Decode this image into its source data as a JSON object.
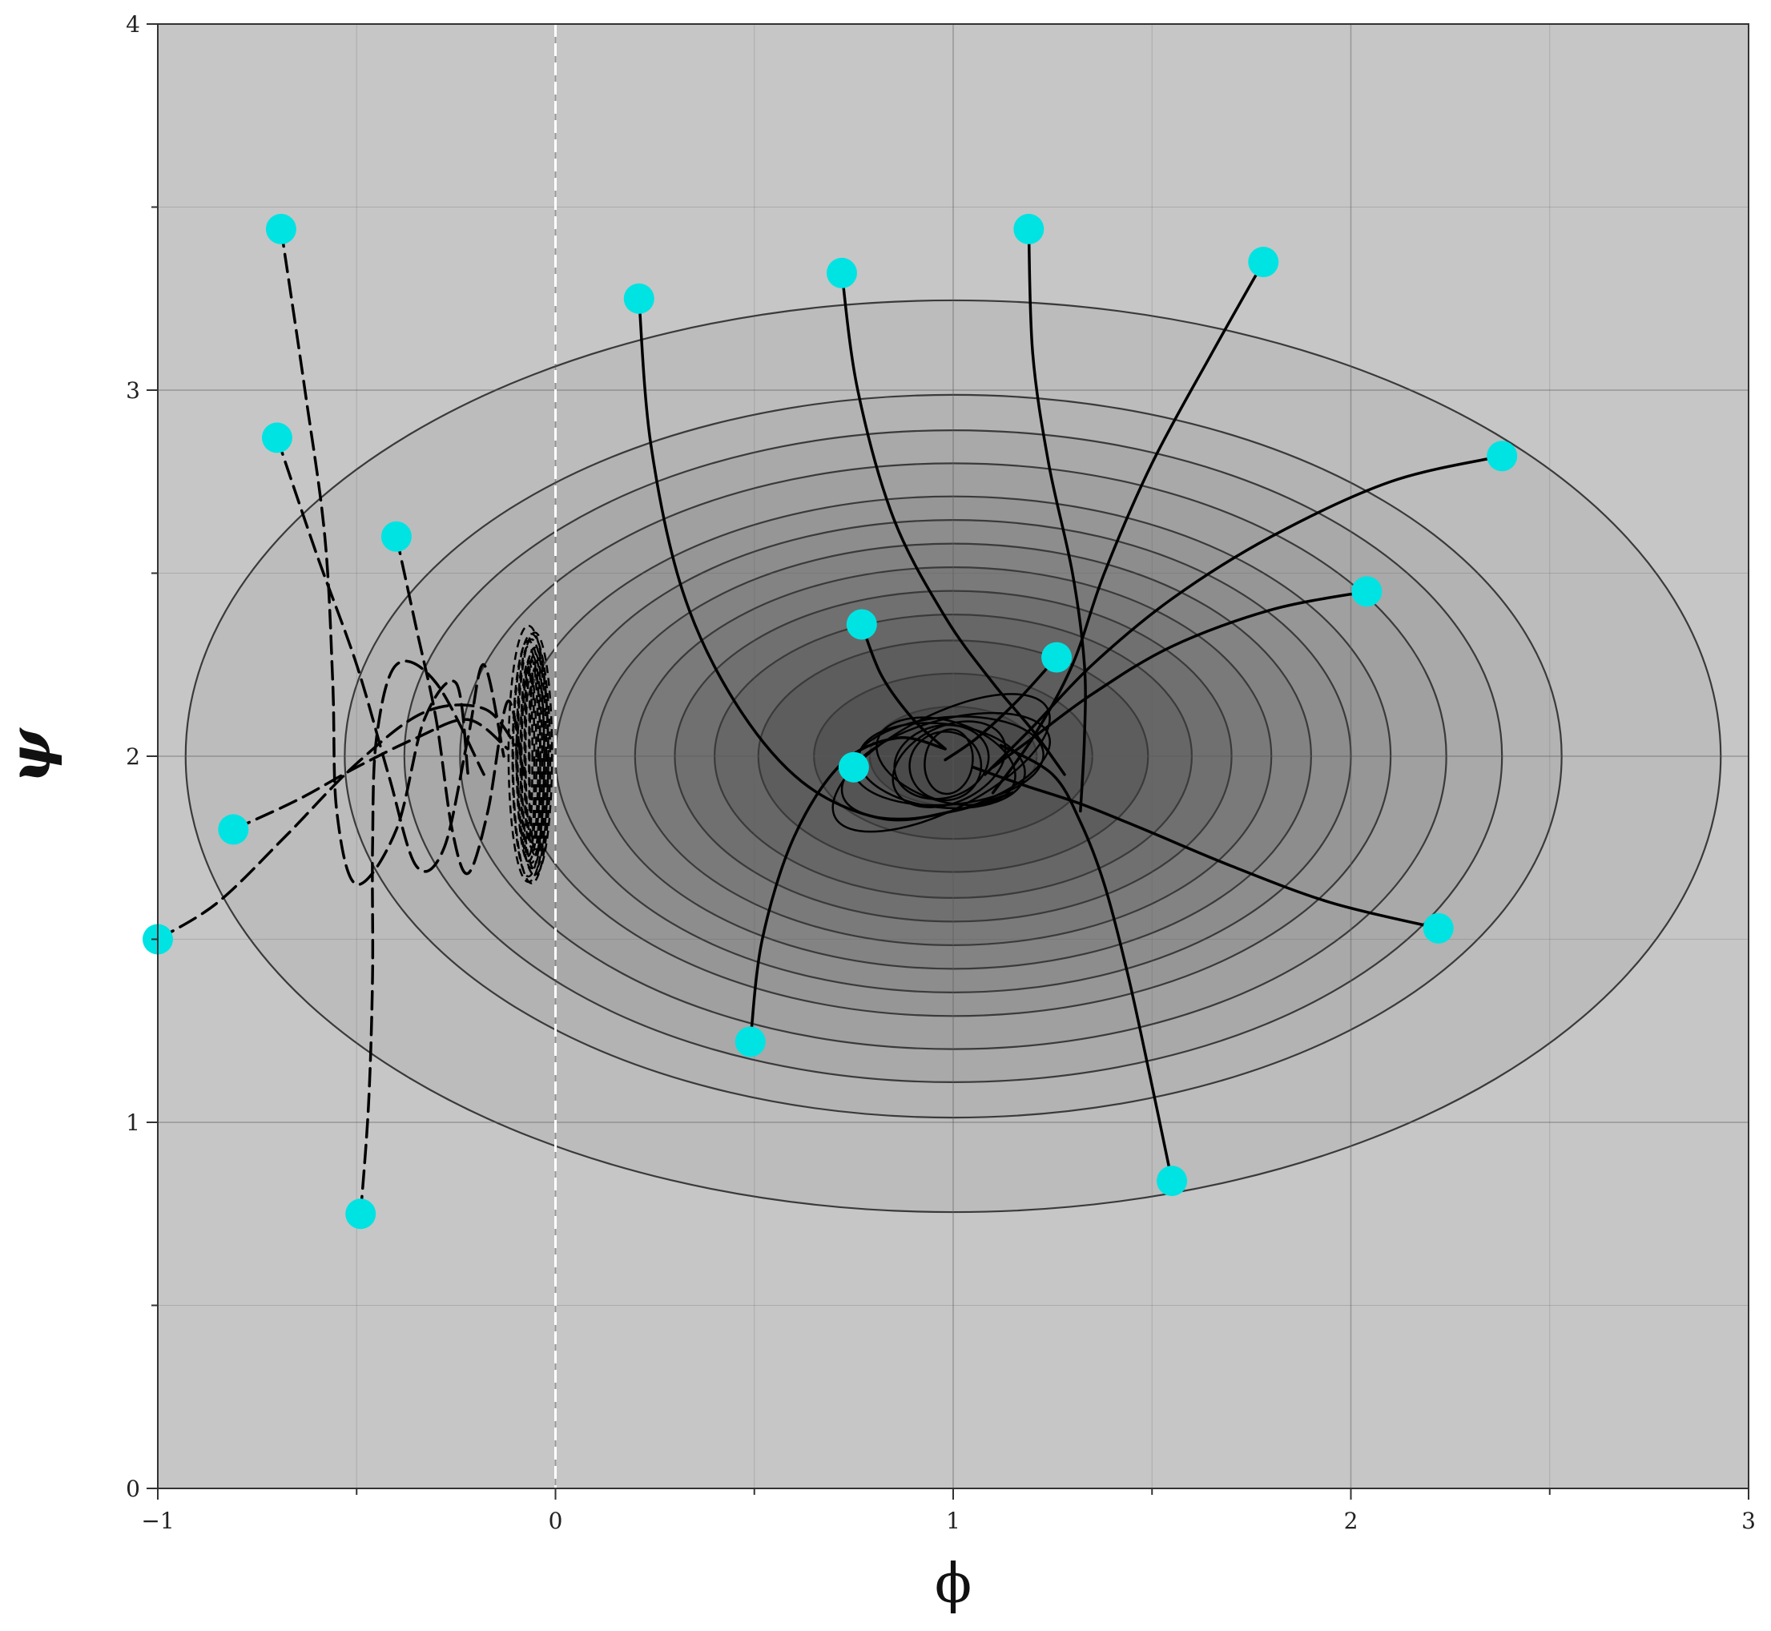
{
  "chart_data": {
    "type": "line",
    "subtype": "phase-portrait with filled contour background",
    "title": "",
    "xlabel": "ϕ",
    "ylabel": "ψ",
    "xlim": [
      -1,
      3
    ],
    "ylim": [
      0,
      4
    ],
    "xticks": [
      "−1",
      "0",
      "1",
      "2",
      "3"
    ],
    "yticks": [
      "0",
      "1",
      "2",
      "3",
      "4"
    ],
    "xtick_values": [
      -1,
      0,
      1,
      2,
      3
    ],
    "ytick_values": [
      0,
      1,
      2,
      3,
      4
    ],
    "minor_ticks": true,
    "grid": true,
    "boundary_line": {
      "x": 0,
      "color": "#ffffff",
      "style": "dashed"
    },
    "contours": {
      "center": [
        1,
        2
      ],
      "ratio_x_to_y": 1.55,
      "semi_axes_x": [
        0.21,
        0.35,
        0.49,
        0.6,
        0.7,
        0.8,
        0.9,
        1.0,
        1.1,
        1.24,
        1.38,
        1.53,
        1.93
      ],
      "outer_fill": "#c6c6c6",
      "inner_fill": "#4a4a4a",
      "line_color": "#3a3a3a"
    },
    "marker_color": "#00e3e3",
    "series": [
      {
        "style": "solid",
        "points": [
          [
            0.21,
            3.25
          ],
          [
            0.24,
            2.85
          ],
          [
            0.32,
            2.45
          ],
          [
            0.45,
            2.15
          ],
          [
            0.62,
            1.93
          ],
          [
            0.82,
            1.83
          ],
          [
            1.0,
            1.85
          ],
          [
            1.15,
            1.9
          ]
        ]
      },
      {
        "style": "solid",
        "points": [
          [
            0.72,
            3.32
          ],
          [
            0.76,
            3.0
          ],
          [
            0.85,
            2.65
          ],
          [
            0.98,
            2.38
          ],
          [
            1.1,
            2.2
          ],
          [
            1.2,
            2.07
          ],
          [
            1.28,
            1.95
          ]
        ]
      },
      {
        "style": "solid",
        "points": [
          [
            1.19,
            3.44
          ],
          [
            1.2,
            3.1
          ],
          [
            1.24,
            2.8
          ],
          [
            1.3,
            2.5
          ],
          [
            1.33,
            2.25
          ],
          [
            1.33,
            2.05
          ],
          [
            1.32,
            1.85
          ]
        ]
      },
      {
        "style": "solid",
        "points": [
          [
            1.78,
            3.35
          ],
          [
            1.65,
            3.1
          ],
          [
            1.5,
            2.8
          ],
          [
            1.38,
            2.5
          ],
          [
            1.3,
            2.25
          ],
          [
            1.2,
            2.05
          ],
          [
            1.1,
            1.9
          ]
        ]
      },
      {
        "style": "solid",
        "points": [
          [
            2.38,
            2.82
          ],
          [
            2.1,
            2.75
          ],
          [
            1.8,
            2.6
          ],
          [
            1.55,
            2.43
          ],
          [
            1.35,
            2.25
          ],
          [
            1.2,
            2.08
          ],
          [
            1.08,
            1.95
          ]
        ]
      },
      {
        "style": "solid",
        "points": [
          [
            2.04,
            2.45
          ],
          [
            1.8,
            2.4
          ],
          [
            1.55,
            2.3
          ],
          [
            1.35,
            2.17
          ],
          [
            1.2,
            2.05
          ],
          [
            1.1,
            1.97
          ]
        ]
      },
      {
        "style": "solid",
        "points": [
          [
            2.22,
            1.53
          ],
          [
            1.95,
            1.6
          ],
          [
            1.7,
            1.7
          ],
          [
            1.48,
            1.8
          ],
          [
            1.32,
            1.87
          ],
          [
            1.18,
            1.92
          ],
          [
            1.05,
            1.97
          ]
        ]
      },
      {
        "style": "solid",
        "points": [
          [
            1.55,
            0.84
          ],
          [
            1.5,
            1.1
          ],
          [
            1.44,
            1.4
          ],
          [
            1.38,
            1.65
          ],
          [
            1.32,
            1.82
          ],
          [
            1.25,
            1.95
          ],
          [
            1.12,
            2.03
          ]
        ]
      },
      {
        "style": "solid",
        "points": [
          [
            0.49,
            1.22
          ],
          [
            0.52,
            1.5
          ],
          [
            0.6,
            1.78
          ],
          [
            0.72,
            1.98
          ],
          [
            0.86,
            2.05
          ],
          [
            0.98,
            2.02
          ]
        ]
      },
      {
        "style": "solid",
        "points": [
          [
            0.77,
            2.36
          ],
          [
            0.82,
            2.22
          ],
          [
            0.9,
            2.1
          ],
          [
            0.98,
            2.02
          ]
        ]
      },
      {
        "style": "solid",
        "points": [
          [
            1.26,
            2.27
          ],
          [
            1.16,
            2.15
          ],
          [
            1.06,
            2.05
          ],
          [
            0.98,
            1.99
          ]
        ]
      },
      {
        "style": "dashed",
        "points": [
          [
            -0.69,
            3.44
          ],
          [
            -0.63,
            3.0
          ],
          [
            -0.58,
            2.6
          ],
          [
            -0.56,
            2.2
          ],
          [
            -0.55,
            1.85
          ],
          [
            -0.5,
            1.65
          ],
          [
            -0.4,
            1.8
          ],
          [
            -0.33,
            2.1
          ],
          [
            -0.25,
            2.2
          ],
          [
            -0.22,
            1.95
          ]
        ]
      },
      {
        "style": "dashed",
        "points": [
          [
            -0.7,
            2.87
          ],
          [
            -0.6,
            2.55
          ],
          [
            -0.5,
            2.25
          ],
          [
            -0.42,
            1.95
          ],
          [
            -0.35,
            1.7
          ],
          [
            -0.28,
            1.75
          ],
          [
            -0.22,
            2.05
          ],
          [
            -0.18,
            2.25
          ],
          [
            -0.13,
            2.0
          ]
        ]
      },
      {
        "style": "dashed",
        "points": [
          [
            -0.4,
            2.6
          ],
          [
            -0.35,
            2.35
          ],
          [
            -0.3,
            2.1
          ],
          [
            -0.26,
            1.8
          ],
          [
            -0.22,
            1.68
          ],
          [
            -0.17,
            1.85
          ],
          [
            -0.12,
            2.15
          ],
          [
            -0.08,
            1.95
          ]
        ]
      },
      {
        "style": "dashed",
        "points": [
          [
            -0.81,
            1.8
          ],
          [
            -0.65,
            1.88
          ],
          [
            -0.5,
            1.97
          ],
          [
            -0.35,
            2.05
          ],
          [
            -0.22,
            2.1
          ],
          [
            -0.12,
            2.02
          ]
        ]
      },
      {
        "style": "dashed",
        "points": [
          [
            -1.0,
            1.5
          ],
          [
            -0.85,
            1.6
          ],
          [
            -0.68,
            1.78
          ],
          [
            -0.5,
            1.98
          ],
          [
            -0.33,
            2.12
          ],
          [
            -0.18,
            2.13
          ],
          [
            -0.1,
            2.03
          ]
        ]
      },
      {
        "style": "dashed",
        "points": [
          [
            -0.49,
            0.75
          ],
          [
            -0.47,
            1.05
          ],
          [
            -0.46,
            1.4
          ],
          [
            -0.46,
            1.75
          ],
          [
            -0.45,
            2.05
          ],
          [
            -0.4,
            2.25
          ],
          [
            -0.3,
            2.2
          ],
          [
            -0.18,
            1.95
          ]
        ]
      }
    ],
    "attractor_nodes": [
      {
        "style": "solid",
        "center": [
          0.98,
          1.98
        ],
        "rx": 0.3,
        "ry": 0.13,
        "loops": 9
      },
      {
        "style": "dashed",
        "center": [
          -0.06,
          2.0
        ],
        "rx": 0.05,
        "ry": 0.35,
        "loops": 14
      }
    ],
    "start_points": [
      [
        0.21,
        3.25
      ],
      [
        0.72,
        3.32
      ],
      [
        1.19,
        3.44
      ],
      [
        1.78,
        3.35
      ],
      [
        2.38,
        2.82
      ],
      [
        2.04,
        2.45
      ],
      [
        2.22,
        1.53
      ],
      [
        1.55,
        0.84
      ],
      [
        0.49,
        1.22
      ],
      [
        0.77,
        2.36
      ],
      [
        1.26,
        2.27
      ],
      [
        0.75,
        1.97
      ],
      [
        -0.69,
        3.44
      ],
      [
        -0.7,
        2.87
      ],
      [
        -0.4,
        2.6
      ],
      [
        -0.81,
        1.8
      ],
      [
        -1.0,
        1.5
      ],
      [
        -0.49,
        0.75
      ]
    ]
  }
}
